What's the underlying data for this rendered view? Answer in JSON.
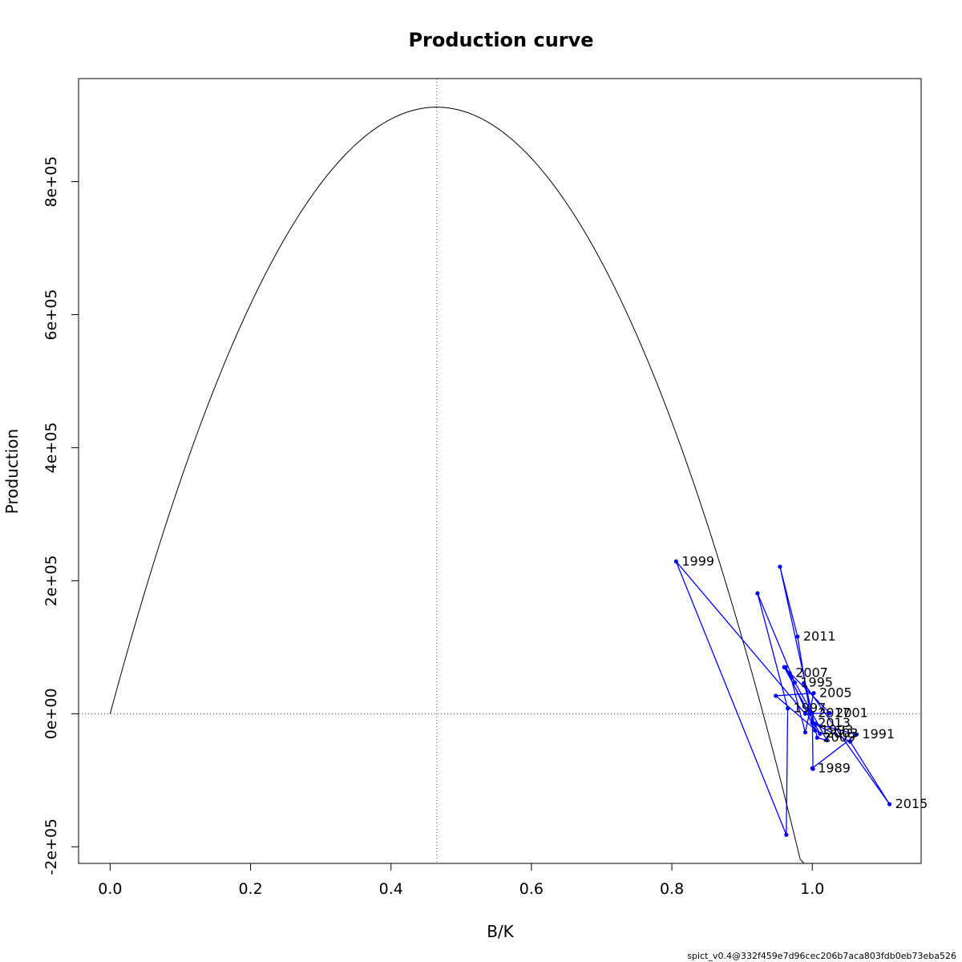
{
  "chart_data": {
    "type": "line",
    "title": "Production curve",
    "xlabel": "B/K",
    "ylabel": "Production",
    "xlim": [
      -0.045,
      1.155
    ],
    "ylim": [
      -225000,
      955000
    ],
    "xticks": [
      0.0,
      0.2,
      0.4,
      0.6,
      0.8,
      1.0
    ],
    "xtick_labels": [
      "0.0",
      "0.2",
      "0.4",
      "0.6",
      "0.8",
      "1.0"
    ],
    "yticks": [
      -200000,
      0,
      200000,
      400000,
      600000,
      800000
    ],
    "ytick_labels": [
      "-2e+05",
      "0e+00",
      "2e+05",
      "4e+05",
      "6e+05",
      "8e+05"
    ],
    "reference_lines": {
      "vertical_x": 0.465,
      "horizontal_y": 0
    },
    "curve": {
      "bmsy": 0.465,
      "msy": 912000,
      "x_end": 1.08
    },
    "colors": {
      "curve": "#000000",
      "trajectory": "#0000ff",
      "reference": "#555555"
    },
    "trajectory": [
      {
        "year": "1989",
        "x": 1.0,
        "y": -82000
      },
      {
        "year": "",
        "x": 1.063,
        "y": -31000
      },
      {
        "year": "1991",
        "x": 1.063,
        "y": -31000
      },
      {
        "year": "",
        "x": 1.004,
        "y": -15000
      },
      {
        "year": "1993",
        "x": 1.004,
        "y": -25000
      },
      {
        "year": "",
        "x": 0.962,
        "y": 70000
      },
      {
        "year": "1995",
        "x": 0.975,
        "y": 47000
      },
      {
        "year": "",
        "x": 0.922,
        "y": 181000
      },
      {
        "year": "1997",
        "x": 0.965,
        "y": 8000
      },
      {
        "year": "",
        "x": 0.963,
        "y": -182000
      },
      {
        "year": "1999",
        "x": 0.806,
        "y": 229000
      },
      {
        "year": "",
        "x": 0.99,
        "y": 0
      },
      {
        "year": "2001",
        "x": 1.025,
        "y": 1000
      },
      {
        "year": "",
        "x": 0.96,
        "y": 70000
      },
      {
        "year": "2003",
        "x": 1.011,
        "y": -30000
      },
      {
        "year": "",
        "x": 0.948,
        "y": 27000
      },
      {
        "year": "2005",
        "x": 1.002,
        "y": 31000
      },
      {
        "year": "",
        "x": 0.99,
        "y": -28000
      },
      {
        "year": "2007",
        "x": 0.968,
        "y": 61000
      },
      {
        "year": "",
        "x": 1.021,
        "y": -40000
      },
      {
        "year": "2009",
        "x": 1.007,
        "y": -36000
      },
      {
        "year": "",
        "x": 0.954,
        "y": 221000
      },
      {
        "year": "2011",
        "x": 0.979,
        "y": 116000
      },
      {
        "year": "",
        "x": 0.996,
        "y": 6000
      },
      {
        "year": "2013",
        "x": 1.0,
        "y": -14000
      },
      {
        "year": "",
        "x": 1.054,
        "y": -42000
      },
      {
        "year": "2015",
        "x": 1.11,
        "y": -136000
      },
      {
        "year": "",
        "x": 0.988,
        "y": 46000
      },
      {
        "year": "2017",
        "x": 1.0,
        "y": 1000
      },
      {
        "year": "",
        "x": 1.001,
        "y": -83000
      }
    ]
  },
  "footer": "spict_v0.4@332f459e7d96cec206b7aca803fdb0eb73eba526"
}
